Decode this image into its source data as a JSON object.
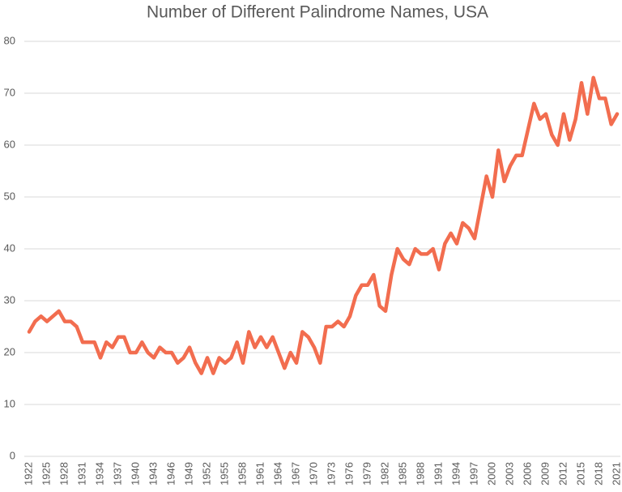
{
  "chart_data": {
    "type": "line",
    "title": "Number of Different Palindrome Names, USA",
    "x": [
      1922,
      1923,
      1924,
      1925,
      1926,
      1927,
      1928,
      1929,
      1930,
      1931,
      1932,
      1933,
      1934,
      1935,
      1936,
      1937,
      1938,
      1939,
      1940,
      1941,
      1942,
      1943,
      1944,
      1945,
      1946,
      1947,
      1948,
      1949,
      1950,
      1951,
      1952,
      1953,
      1954,
      1955,
      1956,
      1957,
      1958,
      1959,
      1960,
      1961,
      1962,
      1963,
      1964,
      1965,
      1966,
      1967,
      1968,
      1969,
      1970,
      1971,
      1972,
      1973,
      1974,
      1975,
      1976,
      1977,
      1978,
      1979,
      1980,
      1981,
      1982,
      1983,
      1984,
      1985,
      1986,
      1987,
      1988,
      1989,
      1990,
      1991,
      1992,
      1993,
      1994,
      1995,
      1996,
      1997,
      1998,
      1999,
      2000,
      2001,
      2002,
      2003,
      2004,
      2005,
      2006,
      2007,
      2008,
      2009,
      2010,
      2011,
      2012,
      2013,
      2014,
      2015,
      2016,
      2017,
      2018,
      2019,
      2020,
      2021
    ],
    "values": [
      24,
      26,
      27,
      26,
      27,
      28,
      26,
      26,
      25,
      22,
      22,
      22,
      19,
      22,
      21,
      23,
      23,
      20,
      20,
      22,
      20,
      19,
      21,
      20,
      20,
      18,
      19,
      21,
      18,
      16,
      19,
      16,
      19,
      18,
      19,
      22,
      18,
      24,
      21,
      23,
      21,
      23,
      20,
      17,
      20,
      18,
      24,
      23,
      21,
      18,
      25,
      25,
      26,
      25,
      27,
      31,
      33,
      33,
      35,
      29,
      28,
      35,
      40,
      38,
      37,
      40,
      39,
      39,
      40,
      36,
      41,
      43,
      41,
      45,
      44,
      42,
      48,
      54,
      50,
      59,
      53,
      56,
      58,
      58,
      63,
      68,
      65,
      66,
      62,
      60,
      66,
      61,
      65,
      72,
      66,
      73,
      69,
      69,
      64,
      66
    ],
    "color": "#f26d4f",
    "xlim": [
      1922,
      2021
    ],
    "xticks": [
      1922,
      1925,
      1928,
      1931,
      1934,
      1937,
      1940,
      1943,
      1946,
      1949,
      1952,
      1955,
      1958,
      1961,
      1964,
      1967,
      1970,
      1973,
      1976,
      1979,
      1982,
      1985,
      1988,
      1991,
      1994,
      1997,
      2000,
      2003,
      2006,
      2009,
      2012,
      2015,
      2018,
      2021
    ],
    "ylim": [
      0,
      80
    ],
    "yticks": [
      0,
      10,
      20,
      30,
      40,
      50,
      60,
      70,
      80
    ],
    "grid": true
  }
}
